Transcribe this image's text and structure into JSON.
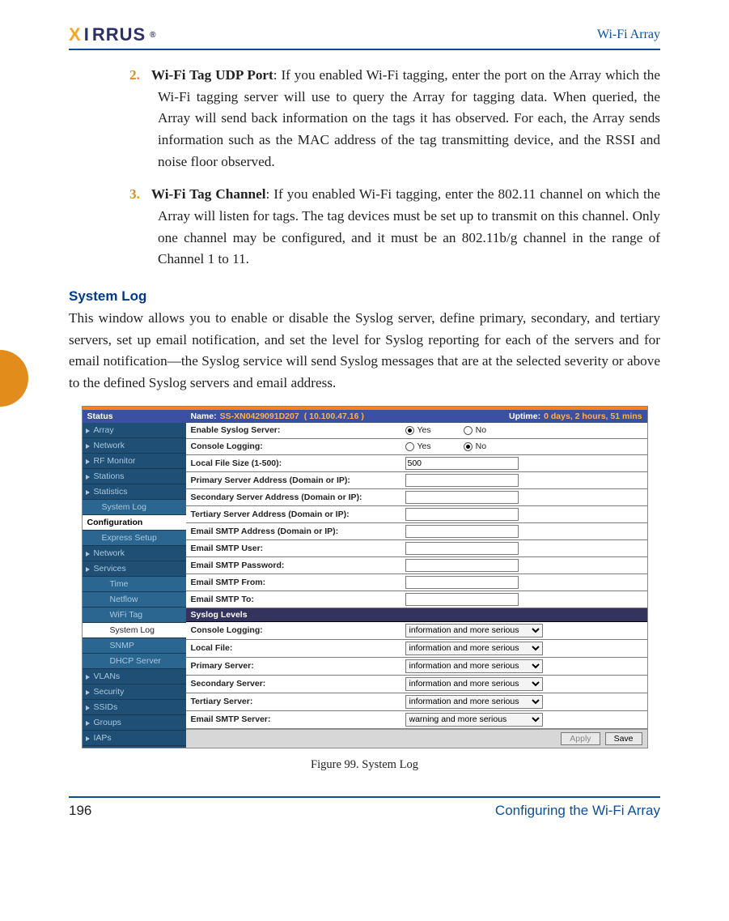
{
  "header": {
    "product": "Wi-Fi Array",
    "logo_pre": "X",
    "logo_mid": "I",
    "logo_rest": "RRUS",
    "logo_reg": "®"
  },
  "items": [
    {
      "num": "2.",
      "title": "Wi-Fi Tag UDP Port",
      "text": ": If you enabled Wi-Fi tagging, enter the port on the Array which the Wi-Fi tagging server will use to query the Array for tagging data. When queried, the Array will send back information on the tags it has observed. For each, the Array sends information such as the MAC address of the tag transmitting device, and the RSSI and noise floor observed."
    },
    {
      "num": "3.",
      "title": "Wi-Fi Tag Channel",
      "text": ": If you enabled Wi-Fi tagging, enter the 802.11 channel on which the Array will listen for tags. The tag devices must be set up to transmit on this channel. Only one channel may be configured, and it must be an 802.11b/g channel in the range of Channel 1 to 11."
    }
  ],
  "section_title": "System Log",
  "section_para": "This window allows you to enable or disable the Syslog server, define primary, secondary, and tertiary servers, set up email notification, and set the level for Syslog reporting for each of the servers and for email notification—the Syslog service will send Syslog messages that are at the selected severity or above to the defined Syslog servers and email address.",
  "shot": {
    "hdr": {
      "status": "Status",
      "name_lbl": "Name:",
      "name_val": "SS-XN0429091D207",
      "ip": "( 10.100.47.16 )",
      "uptime_lbl": "Uptime:",
      "uptime_val": "0 days, 2 hours, 51 mins"
    },
    "side": [
      {
        "t": "Array",
        "caret": true
      },
      {
        "t": "Network",
        "caret": true
      },
      {
        "t": "RF Monitor",
        "caret": true
      },
      {
        "t": "Stations",
        "caret": true
      },
      {
        "t": "Statistics",
        "caret": true
      },
      {
        "t": "System Log",
        "sub": true
      },
      {
        "t": "Configuration",
        "heading": true
      },
      {
        "t": "Express Setup",
        "sub": true
      },
      {
        "t": "Network",
        "caret": true
      },
      {
        "t": "Services",
        "caret": true
      },
      {
        "t": "Time",
        "sub2": true
      },
      {
        "t": "Netflow",
        "sub2": true
      },
      {
        "t": "WiFi Tag",
        "sub2": true
      },
      {
        "t": "System Log",
        "sub2": true,
        "sel": true
      },
      {
        "t": "SNMP",
        "sub2": true
      },
      {
        "t": "DHCP Server",
        "sub2": true
      },
      {
        "t": "VLANs",
        "caret": true
      },
      {
        "t": "Security",
        "caret": true
      },
      {
        "t": "SSIDs",
        "caret": true
      },
      {
        "t": "Groups",
        "caret": true
      },
      {
        "t": "IAPs",
        "caret": true
      }
    ],
    "rows": [
      {
        "lbl": "Enable Syslog Server:",
        "type": "yn",
        "val": "yes"
      },
      {
        "lbl": "Console Logging:",
        "type": "yn",
        "val": "no"
      },
      {
        "lbl": "Local File Size (1-500):",
        "type": "text",
        "val": "500"
      },
      {
        "lbl": "Primary Server Address (Domain or IP):",
        "type": "text",
        "val": ""
      },
      {
        "lbl": "Secondary Server Address (Domain or IP):",
        "type": "text",
        "val": ""
      },
      {
        "lbl": "Tertiary Server Address (Domain or IP):",
        "type": "text",
        "val": ""
      },
      {
        "lbl": "Email SMTP Address (Domain or IP):",
        "type": "text",
        "val": ""
      },
      {
        "lbl": "Email SMTP User:",
        "type": "text",
        "val": ""
      },
      {
        "lbl": "Email SMTP Password:",
        "type": "text",
        "val": ""
      },
      {
        "lbl": "Email SMTP From:",
        "type": "text",
        "val": ""
      },
      {
        "lbl": "Email SMTP To:",
        "type": "text",
        "val": ""
      }
    ],
    "levels_hdr": "Syslog Levels",
    "levels": [
      {
        "lbl": "Console Logging:",
        "val": "information and more serious"
      },
      {
        "lbl": "Local File:",
        "val": "information and more serious"
      },
      {
        "lbl": "Primary Server:",
        "val": "information and more serious"
      },
      {
        "lbl": "Secondary Server:",
        "val": "information and more serious"
      },
      {
        "lbl": "Tertiary Server:",
        "val": "information and more serious"
      },
      {
        "lbl": "Email SMTP Server:",
        "val": "warning and more serious"
      }
    ],
    "buttons": {
      "apply": "Apply",
      "save": "Save"
    },
    "yes": "Yes",
    "no": "No"
  },
  "caption": "Figure 99. System Log",
  "footer": {
    "page": "196",
    "section": "Configuring the Wi-Fi Array"
  }
}
